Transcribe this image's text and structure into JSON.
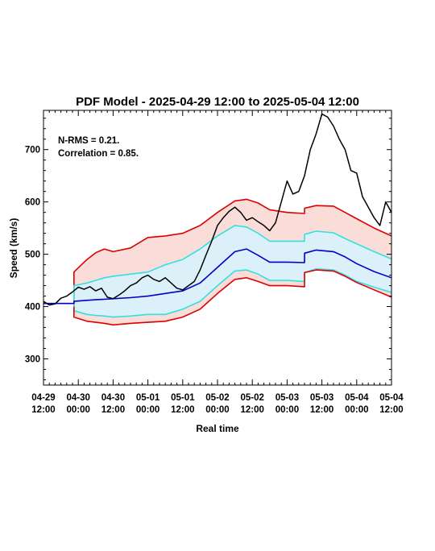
{
  "chart_data": {
    "type": "line",
    "title": "PDF Model - 2025-04-29 12:00 to 2025-05-04 12:00",
    "xlabel": "Real time",
    "ylabel": "Speed (km/s)",
    "xlim": [
      "2025-04-29 12:00",
      "2025-05-04 12:00"
    ],
    "ylim": [
      250,
      775
    ],
    "yticks": [
      300,
      400,
      500,
      600,
      700
    ],
    "xticks": [
      {
        "x": "2025-04-29 12:00",
        "l1": "04-29",
        "l2": "12:00"
      },
      {
        "x": "2025-04-30 00:00",
        "l1": "04-30",
        "l2": "00:00"
      },
      {
        "x": "2025-04-30 12:00",
        "l1": "04-30",
        "l2": "12:00"
      },
      {
        "x": "2025-05-01 00:00",
        "l1": "05-01",
        "l2": "00:00"
      },
      {
        "x": "2025-05-01 12:00",
        "l1": "05-01",
        "l2": "12:00"
      },
      {
        "x": "2025-05-02 00:00",
        "l1": "05-02",
        "l2": "00:00"
      },
      {
        "x": "2025-05-02 12:00",
        "l1": "05-02",
        "l2": "12:00"
      },
      {
        "x": "2025-05-03 00:00",
        "l1": "05-03",
        "l2": "00:00"
      },
      {
        "x": "2025-05-03 12:00",
        "l1": "05-03",
        "l2": "12:00"
      },
      {
        "x": "2025-05-04 00:00",
        "l1": "05-04",
        "l2": "00:00"
      },
      {
        "x": "2025-05-04 12:00",
        "l1": "05-04",
        "l2": "12:00"
      }
    ],
    "annotations": [
      "N-RMS = 0.21.",
      "Correlation = 0.85."
    ],
    "colors": {
      "observed": "#000000",
      "median": "#0000cc",
      "inner": "#33e0e0",
      "outer": "#dd0000",
      "outer_fill": "#fadcd9",
      "inner_fill": "#dcf0fa"
    },
    "model_x": [
      "2025-04-29 12:00",
      "2025-04-29 22:30",
      "2025-04-29 22:30",
      "2025-04-30 03:00",
      "2025-04-30 06:00",
      "2025-04-30 09:00",
      "2025-04-30 12:00",
      "2025-04-30 18:00",
      "2025-05-01 00:00",
      "2025-05-01 06:00",
      "2025-05-01 12:00",
      "2025-05-01 18:00",
      "2025-05-02 00:00",
      "2025-05-02 06:00",
      "2025-05-02 10:00",
      "2025-05-02 14:00",
      "2025-05-02 18:00",
      "2025-05-03 00:00",
      "2025-05-03 06:00",
      "2025-05-03 06:01",
      "2025-05-03 10:00",
      "2025-05-03 16:00",
      "2025-05-03 20:00",
      "2025-05-04 00:00",
      "2025-05-04 06:00",
      "2025-05-04 12:00"
    ],
    "series": [
      {
        "id": "upper-outer",
        "values": [
          null,
          400,
          466,
          490,
          503,
          510,
          505,
          512,
          532,
          535,
          540,
          555,
          580,
          602,
          605,
          598,
          585,
          580,
          578,
          588,
          593,
          592,
          580,
          568,
          550,
          535
        ]
      },
      {
        "id": "upper-inner",
        "values": [
          null,
          400,
          440,
          445,
          450,
          455,
          458,
          462,
          466,
          480,
          490,
          510,
          535,
          555,
          552,
          540,
          525,
          525,
          525,
          538,
          544,
          541,
          530,
          520,
          505,
          491
        ]
      },
      {
        "id": "median",
        "values": [
          406,
          406,
          410,
          412,
          413,
          414,
          415,
          417,
          420,
          425,
          430,
          445,
          475,
          505,
          510,
          498,
          485,
          485,
          484,
          502,
          508,
          505,
          495,
          482,
          467,
          455
        ]
      },
      {
        "id": "lower-inner",
        "values": [
          null,
          400,
          392,
          385,
          383,
          382,
          380,
          382,
          385,
          385,
          395,
          410,
          440,
          468,
          470,
          462,
          450,
          450,
          448,
          465,
          472,
          470,
          460,
          448,
          437,
          427
        ]
      },
      {
        "id": "lower-outer",
        "values": [
          null,
          400,
          380,
          372,
          370,
          368,
          365,
          368,
          370,
          372,
          380,
          395,
          425,
          452,
          455,
          448,
          440,
          440,
          438,
          465,
          470,
          468,
          458,
          446,
          432,
          418
        ]
      }
    ],
    "observed": {
      "x": [
        "2025-04-29 12:00",
        "2025-04-29 14:00",
        "2025-04-29 16:00",
        "2025-04-29 18:00",
        "2025-04-29 20:00",
        "2025-04-29 22:00",
        "2025-04-30 00:00",
        "2025-04-30 02:00",
        "2025-04-30 04:00",
        "2025-04-30 06:00",
        "2025-04-30 08:00",
        "2025-04-30 10:00",
        "2025-04-30 12:00",
        "2025-04-30 14:00",
        "2025-04-30 16:00",
        "2025-04-30 18:00",
        "2025-04-30 20:00",
        "2025-04-30 22:00",
        "2025-05-01 00:00",
        "2025-05-01 02:00",
        "2025-05-01 04:00",
        "2025-05-01 06:00",
        "2025-05-01 08:00",
        "2025-05-01 10:00",
        "2025-05-01 12:00",
        "2025-05-01 14:00",
        "2025-05-01 16:00",
        "2025-05-01 18:00",
        "2025-05-01 20:00",
        "2025-05-01 22:00",
        "2025-05-02 00:00",
        "2025-05-02 02:00",
        "2025-05-02 04:00",
        "2025-05-02 06:00",
        "2025-05-02 08:00",
        "2025-05-02 10:00",
        "2025-05-02 12:00",
        "2025-05-02 14:00",
        "2025-05-02 16:00",
        "2025-05-02 18:00",
        "2025-05-02 20:00",
        "2025-05-02 22:00",
        "2025-05-03 00:00",
        "2025-05-03 02:00",
        "2025-05-03 04:00",
        "2025-05-03 06:00",
        "2025-05-03 08:00",
        "2025-05-03 10:00",
        "2025-05-03 12:00",
        "2025-05-03 14:00",
        "2025-05-03 16:00",
        "2025-05-03 18:00",
        "2025-05-03 20:00",
        "2025-05-03 22:00",
        "2025-05-04 00:00",
        "2025-05-04 02:00",
        "2025-05-04 04:00",
        "2025-05-04 06:00",
        "2025-05-04 08:00",
        "2025-05-04 10:00",
        "2025-05-04 12:00"
      ],
      "values": [
        410,
        403,
        405,
        416,
        420,
        428,
        437,
        433,
        438,
        430,
        435,
        418,
        415,
        422,
        430,
        440,
        445,
        455,
        460,
        452,
        448,
        455,
        445,
        435,
        432,
        440,
        448,
        470,
        498,
        525,
        555,
        570,
        582,
        590,
        580,
        565,
        570,
        562,
        555,
        545,
        560,
        600,
        640,
        615,
        620,
        650,
        700,
        730,
        768,
        762,
        745,
        720,
        700,
        660,
        655,
        610,
        590,
        570,
        555,
        600,
        580
      ]
    }
  }
}
